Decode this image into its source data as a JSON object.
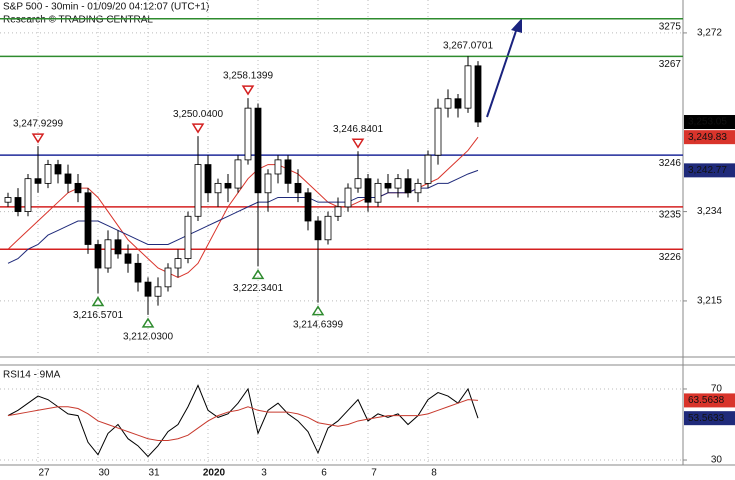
{
  "chart_data": [
    {
      "type": "candlestick",
      "title": "S&P 500 - 30min - 01/09/20 04:12:07 (UTC+1)",
      "subtitle": "Research © TRADING CENTRAL",
      "categories": [
        null,
        null,
        null,
        "27",
        null,
        null,
        null,
        null,
        null,
        "30",
        null,
        null,
        null,
        null,
        "31",
        null,
        null,
        null,
        null,
        null,
        "2020",
        null,
        null,
        null,
        null,
        "3",
        null,
        null,
        null,
        null,
        null,
        "6",
        null,
        null,
        null,
        null,
        "7",
        null,
        null,
        null,
        null,
        null,
        "8",
        null,
        null,
        null,
        null,
        null
      ],
      "open": [
        3236,
        3237,
        3234,
        3241,
        3240,
        3244,
        3242,
        3240,
        3238,
        3227,
        3222,
        3228,
        3225,
        3223,
        3219,
        3216,
        3218,
        3222,
        3224,
        3233,
        3244,
        3238,
        3240,
        3239,
        3245,
        3256,
        3238,
        3242,
        3245,
        3240,
        3238,
        3232,
        3228,
        3233,
        3235,
        3239,
        3241,
        3236,
        3240,
        3239,
        3241,
        3238,
        3240,
        3246,
        3256,
        3258,
        3256,
        3265
      ],
      "high": [
        3238,
        3239,
        3242,
        3247.9299,
        3245,
        3245,
        3244,
        3242,
        3239,
        3228,
        3230,
        3230,
        3227,
        3225,
        3220,
        3220,
        3223,
        3226,
        3234,
        3250.04,
        3246,
        3241,
        3242,
        3246,
        3258.1399,
        3257,
        3243,
        3246,
        3246,
        3243,
        3239,
        3233,
        3234,
        3237,
        3240,
        3246.8401,
        3242,
        3241,
        3242,
        3242,
        3243,
        3241,
        3247,
        3258,
        3260,
        3259,
        3267.0701,
        3266
      ],
      "low": [
        3235,
        3233,
        3233,
        3238,
        3239,
        3240,
        3238,
        3236,
        3225,
        3216.5701,
        3221,
        3224,
        3221,
        3217,
        3212.03,
        3214,
        3217,
        3220,
        3223,
        3232,
        3236,
        3235,
        3236,
        3238,
        3244,
        3222.3401,
        3234,
        3240,
        3238,
        3236,
        3230,
        3214.6399,
        3227,
        3232,
        3234,
        3238,
        3234,
        3235,
        3238,
        3237,
        3237,
        3236,
        3239,
        3244,
        3254,
        3254,
        3255,
        3252
      ],
      "close": [
        3237,
        3234,
        3241,
        3240,
        3244,
        3242,
        3240,
        3238,
        3227,
        3222,
        3228,
        3225,
        3223,
        3219,
        3216,
        3218,
        3222,
        3224,
        3233,
        3244,
        3238,
        3240,
        3239,
        3245,
        3256,
        3238,
        3242,
        3245,
        3240,
        3238,
        3232,
        3228,
        3233,
        3235,
        3239,
        3241,
        3236,
        3240,
        3239,
        3241,
        3238,
        3240,
        3246,
        3256,
        3258,
        3256,
        3265,
        3253.05
      ],
      "series": [
        {
          "color": "#d9342b",
          "last_label": "3,249.83",
          "values": [
            3226,
            3228,
            3230,
            3232,
            3234,
            3236,
            3238,
            3239,
            3239,
            3237,
            3234,
            3231,
            3228,
            3226,
            3224,
            3222,
            3221,
            3220,
            3221,
            3223,
            3227,
            3231,
            3235,
            3238,
            3241,
            3243,
            3244,
            3244,
            3243,
            3242,
            3240,
            3238,
            3236,
            3235,
            3235,
            3236,
            3237,
            3237,
            3238,
            3238,
            3238,
            3239,
            3240,
            3241,
            3243,
            3245,
            3247,
            3249.83
          ]
        },
        {
          "color": "#1f2a7a",
          "last_label": "3,242.77",
          "values": [
            3223,
            3224,
            3226,
            3227,
            3229,
            3230,
            3231,
            3232,
            3232,
            3232,
            3231,
            3230,
            3229,
            3228,
            3227,
            3227,
            3227,
            3228,
            3229,
            3230,
            3231,
            3232,
            3233,
            3234,
            3235,
            3236,
            3236,
            3237,
            3237,
            3237,
            3237,
            3236,
            3236,
            3236,
            3236,
            3237,
            3237,
            3237,
            3238,
            3238,
            3238,
            3239,
            3239,
            3240,
            3240,
            3241,
            3242,
            3242.77
          ]
        }
      ],
      "last_price": {
        "value": 3253.05,
        "label": "3,253.05"
      },
      "levels": [
        {
          "value": 3275,
          "color": "#2e8b2e"
        },
        {
          "value": 3267,
          "color": "#2e8b2e"
        },
        {
          "value": 3246,
          "color": "#1f2a9a"
        },
        {
          "value": 3235,
          "color": "#d42020"
        },
        {
          "value": 3226,
          "color": "#d42020"
        }
      ],
      "annotations": [
        {
          "value": 3247.9299,
          "label": "3,247.9299",
          "marker": "down"
        },
        {
          "value": 3250.04,
          "label": "3,250.0400",
          "marker": "down"
        },
        {
          "value": 3258.1399,
          "label": "3,258.1399",
          "marker": "down"
        },
        {
          "value": 3246.8401,
          "label": "3,246.8401",
          "marker": "down"
        },
        {
          "value": 3267.0701,
          "label": "3,267.0701"
        },
        {
          "value": 3216.5701,
          "label": "3,216.5701",
          "marker": "up"
        },
        {
          "value": 3212.03,
          "label": "3,212.0300",
          "marker": "up"
        },
        {
          "value": 3222.3401,
          "label": "3,222.3401",
          "marker": "up"
        },
        {
          "value": 3214.6399,
          "label": "3,214.6399",
          "marker": "up"
        }
      ],
      "ylim": [
        3203.5,
        3279
      ],
      "yticks": [
        {
          "value": 3272,
          "label": "3,272"
        },
        {
          "value": 3234,
          "label": "3,234"
        },
        {
          "value": 3215,
          "label": "3,215"
        }
      ]
    },
    {
      "type": "line",
      "title": "RSI14 - 9MA",
      "series": [
        {
          "color": "#000000",
          "box": "#1f2a7a",
          "last_label": "53.5633",
          "values": [
            55,
            58,
            62,
            66,
            64,
            60,
            56,
            55,
            40,
            33,
            45,
            50,
            42,
            38,
            32,
            38,
            46,
            50,
            60,
            72,
            58,
            54,
            56,
            62,
            70,
            45,
            58,
            62,
            56,
            52,
            46,
            34,
            48,
            52,
            58,
            64,
            52,
            56,
            54,
            56,
            50,
            55,
            64,
            68,
            66,
            62,
            70,
            53.5633
          ]
        },
        {
          "color": "#c83a2e",
          "box": "#d9342b",
          "last_label": "63.5638",
          "values": [
            55,
            56,
            57,
            58,
            59,
            60,
            60,
            59,
            56,
            52,
            50,
            48,
            46,
            44,
            42,
            41,
            41,
            42,
            44,
            48,
            52,
            55,
            57,
            58,
            60,
            58,
            57,
            57,
            57,
            56,
            54,
            51,
            50,
            49,
            50,
            52,
            53,
            54,
            55,
            55,
            55,
            55,
            56,
            58,
            60,
            62,
            64,
            63.5638
          ]
        }
      ],
      "ylim": [
        27.2,
        83.5
      ],
      "yticks": [
        70,
        30
      ]
    }
  ]
}
